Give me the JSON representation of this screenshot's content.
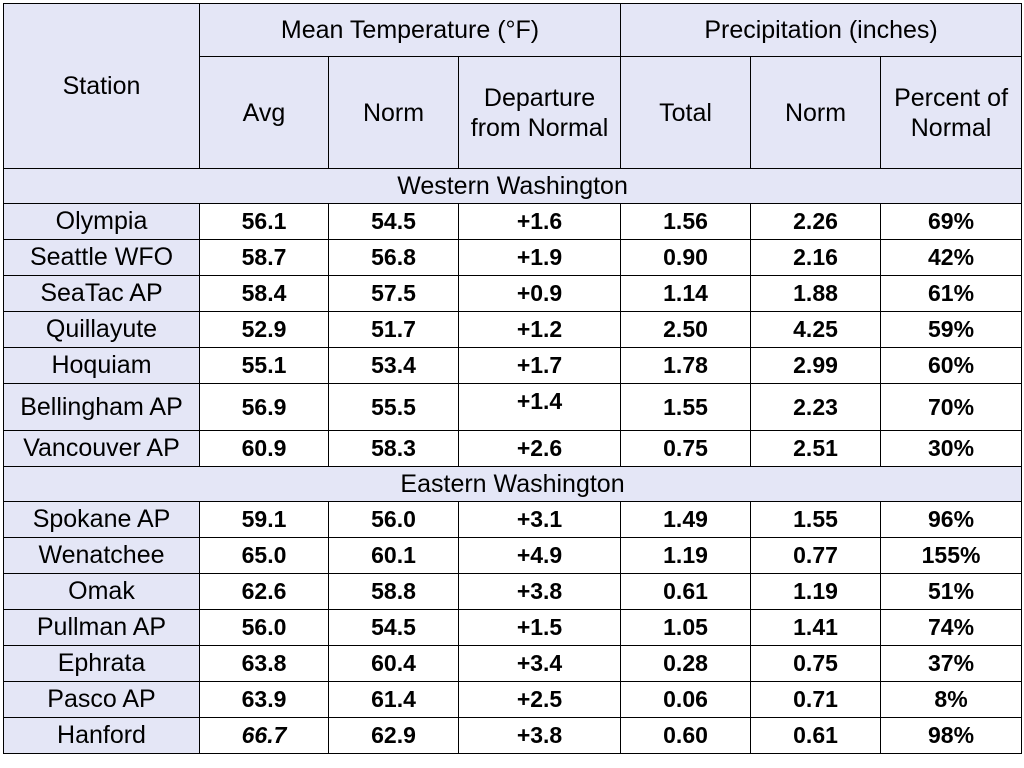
{
  "chart_data": {
    "type": "table",
    "headers": {
      "station": "Station",
      "group_temp": "Mean Temperature (°F)",
      "group_precip": "Precipitation (inches)",
      "columns": [
        "Avg",
        "Norm",
        "Departure from Normal",
        "Total",
        "Norm",
        "Percent of Normal"
      ]
    },
    "regions": [
      {
        "name": "Western Washington",
        "rows": [
          {
            "station": "Olympia",
            "values": [
              "56.1",
              "54.5",
              "+1.6",
              "1.56",
              "2.26",
              "69%"
            ]
          },
          {
            "station": "Seattle WFO",
            "values": [
              "58.7",
              "56.8",
              "+1.9",
              "0.90",
              "2.16",
              "42%"
            ]
          },
          {
            "station": "SeaTac AP",
            "values": [
              "58.4",
              "57.5",
              "+0.9",
              "1.14",
              "1.88",
              "61%"
            ]
          },
          {
            "station": "Quillayute",
            "values": [
              "52.9",
              "51.7",
              "+1.2",
              "2.50",
              "4.25",
              "59%"
            ]
          },
          {
            "station": "Hoquiam",
            "values": [
              "55.1",
              "53.4",
              "+1.7",
              "1.78",
              "2.99",
              "60%"
            ]
          },
          {
            "station": "Bellingham AP",
            "values": [
              "56.9",
              "55.5",
              "+1.4",
              "1.55",
              "2.23",
              "70%"
            ]
          },
          {
            "station": "Vancouver AP",
            "values": [
              "60.9",
              "58.3",
              "+2.6",
              "0.75",
              "2.51",
              "30%"
            ]
          }
        ]
      },
      {
        "name": "Eastern Washington",
        "rows": [
          {
            "station": "Spokane AP",
            "values": [
              "59.1",
              "56.0",
              "+3.1",
              "1.49",
              "1.55",
              "96%"
            ]
          },
          {
            "station": "Wenatchee",
            "values": [
              "65.0",
              "60.1",
              "+4.9",
              "1.19",
              "0.77",
              "155%"
            ]
          },
          {
            "station": "Omak",
            "values": [
              "62.6",
              "58.8",
              "+3.8",
              "0.61",
              "1.19",
              "51%"
            ]
          },
          {
            "station": "Pullman AP",
            "values": [
              "56.0",
              "54.5",
              "+1.5",
              "1.05",
              "1.41",
              "74%"
            ]
          },
          {
            "station": "Ephrata",
            "values": [
              "63.8",
              "60.4",
              "+3.4",
              "0.28",
              "0.75",
              "37%"
            ]
          },
          {
            "station": "Pasco AP",
            "values": [
              "63.9",
              "61.4",
              "+2.5",
              "0.06",
              "0.71",
              "8%"
            ]
          },
          {
            "station": "Hanford",
            "values": [
              "66.7",
              "62.9",
              "+3.8",
              "0.60",
              "0.61",
              "98%"
            ]
          }
        ]
      }
    ]
  }
}
